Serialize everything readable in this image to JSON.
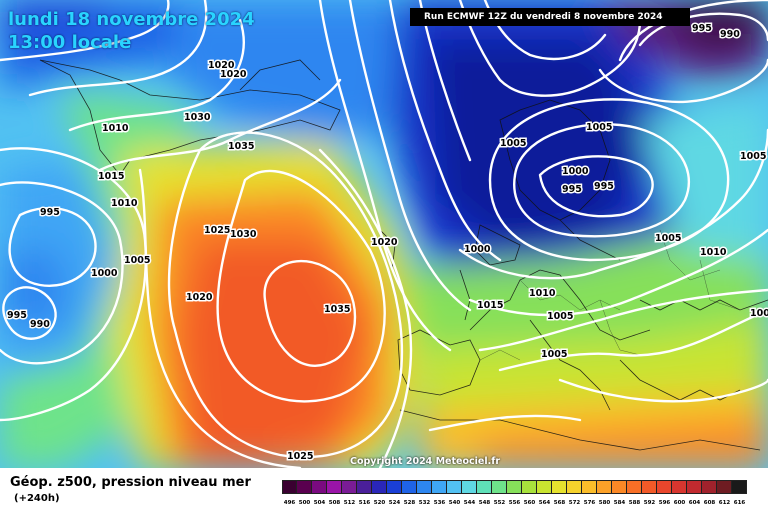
{
  "header": {
    "date_line": "lundi 18 novembre 2024",
    "time_line": "13:00 locale",
    "run_info": "Run ECMWF 12Z du vendredi 8 novembre 2024"
  },
  "footer": {
    "copyright": "Copyright 2024 Meteociel.fr",
    "legend_title": "Géop. z500, pression niveau mer",
    "lead_time": "(+240h)"
  },
  "colorbar": {
    "labels": [
      "496",
      "500",
      "504",
      "508",
      "512",
      "516",
      "520",
      "524",
      "528",
      "532",
      "536",
      "540",
      "544",
      "548",
      "552",
      "556",
      "560",
      "564",
      "568",
      "572",
      "576",
      "580",
      "584",
      "588",
      "592",
      "596",
      "600",
      "604",
      "608",
      "612",
      "616"
    ],
    "colors": [
      "#3a0030",
      "#5a004f",
      "#7a0a80",
      "#9a14a8",
      "#7a1c96",
      "#4a1f9a",
      "#2a26b8",
      "#1a3fd6",
      "#1f63e6",
      "#2d86f0",
      "#3fa6f5",
      "#52c1f2",
      "#5fd8e3",
      "#5fe0b8",
      "#6ee38a",
      "#86e05a",
      "#a8e23c",
      "#c9e430",
      "#e6e22e",
      "#f6d22c",
      "#fbbd2a",
      "#fca128",
      "#fb8826",
      "#f86f26",
      "#f25a28",
      "#e9462c",
      "#d8362f",
      "#c22a2f",
      "#a0222c",
      "#6e1c22",
      "#1a1a1a"
    ],
    "accent_map_colors": {
      "deep_blue": "#0a1f9a",
      "cyan": "#3fd0f5",
      "yellow": "#f6e23a",
      "orange": "#f88a2c",
      "red": "#ee4b2f"
    }
  },
  "isobars": [
    {
      "label": "1020"
    },
    {
      "label": "1020"
    },
    {
      "label": "1030"
    },
    {
      "label": "1035"
    },
    {
      "label": "1015"
    },
    {
      "label": "1010"
    },
    {
      "label": "995"
    },
    {
      "label": "1005"
    },
    {
      "label": "1000"
    },
    {
      "label": "995"
    },
    {
      "label": "990"
    },
    {
      "label": "1025"
    },
    {
      "label": "1030"
    },
    {
      "label": "1020"
    },
    {
      "label": "1035"
    },
    {
      "label": "1020"
    },
    {
      "label": "1025"
    },
    {
      "label": "1005"
    },
    {
      "label": "1000"
    },
    {
      "label": "995"
    },
    {
      "label": "995"
    },
    {
      "label": "1005"
    },
    {
      "label": "1005"
    },
    {
      "label": "1000"
    },
    {
      "label": "1015"
    },
    {
      "label": "1010"
    },
    {
      "label": "1005"
    },
    {
      "label": "1005"
    },
    {
      "label": "1005"
    },
    {
      "label": "1010"
    },
    {
      "label": "1005"
    },
    {
      "label": "1010"
    },
    {
      "label": "995"
    },
    {
      "label": "990"
    }
  ]
}
